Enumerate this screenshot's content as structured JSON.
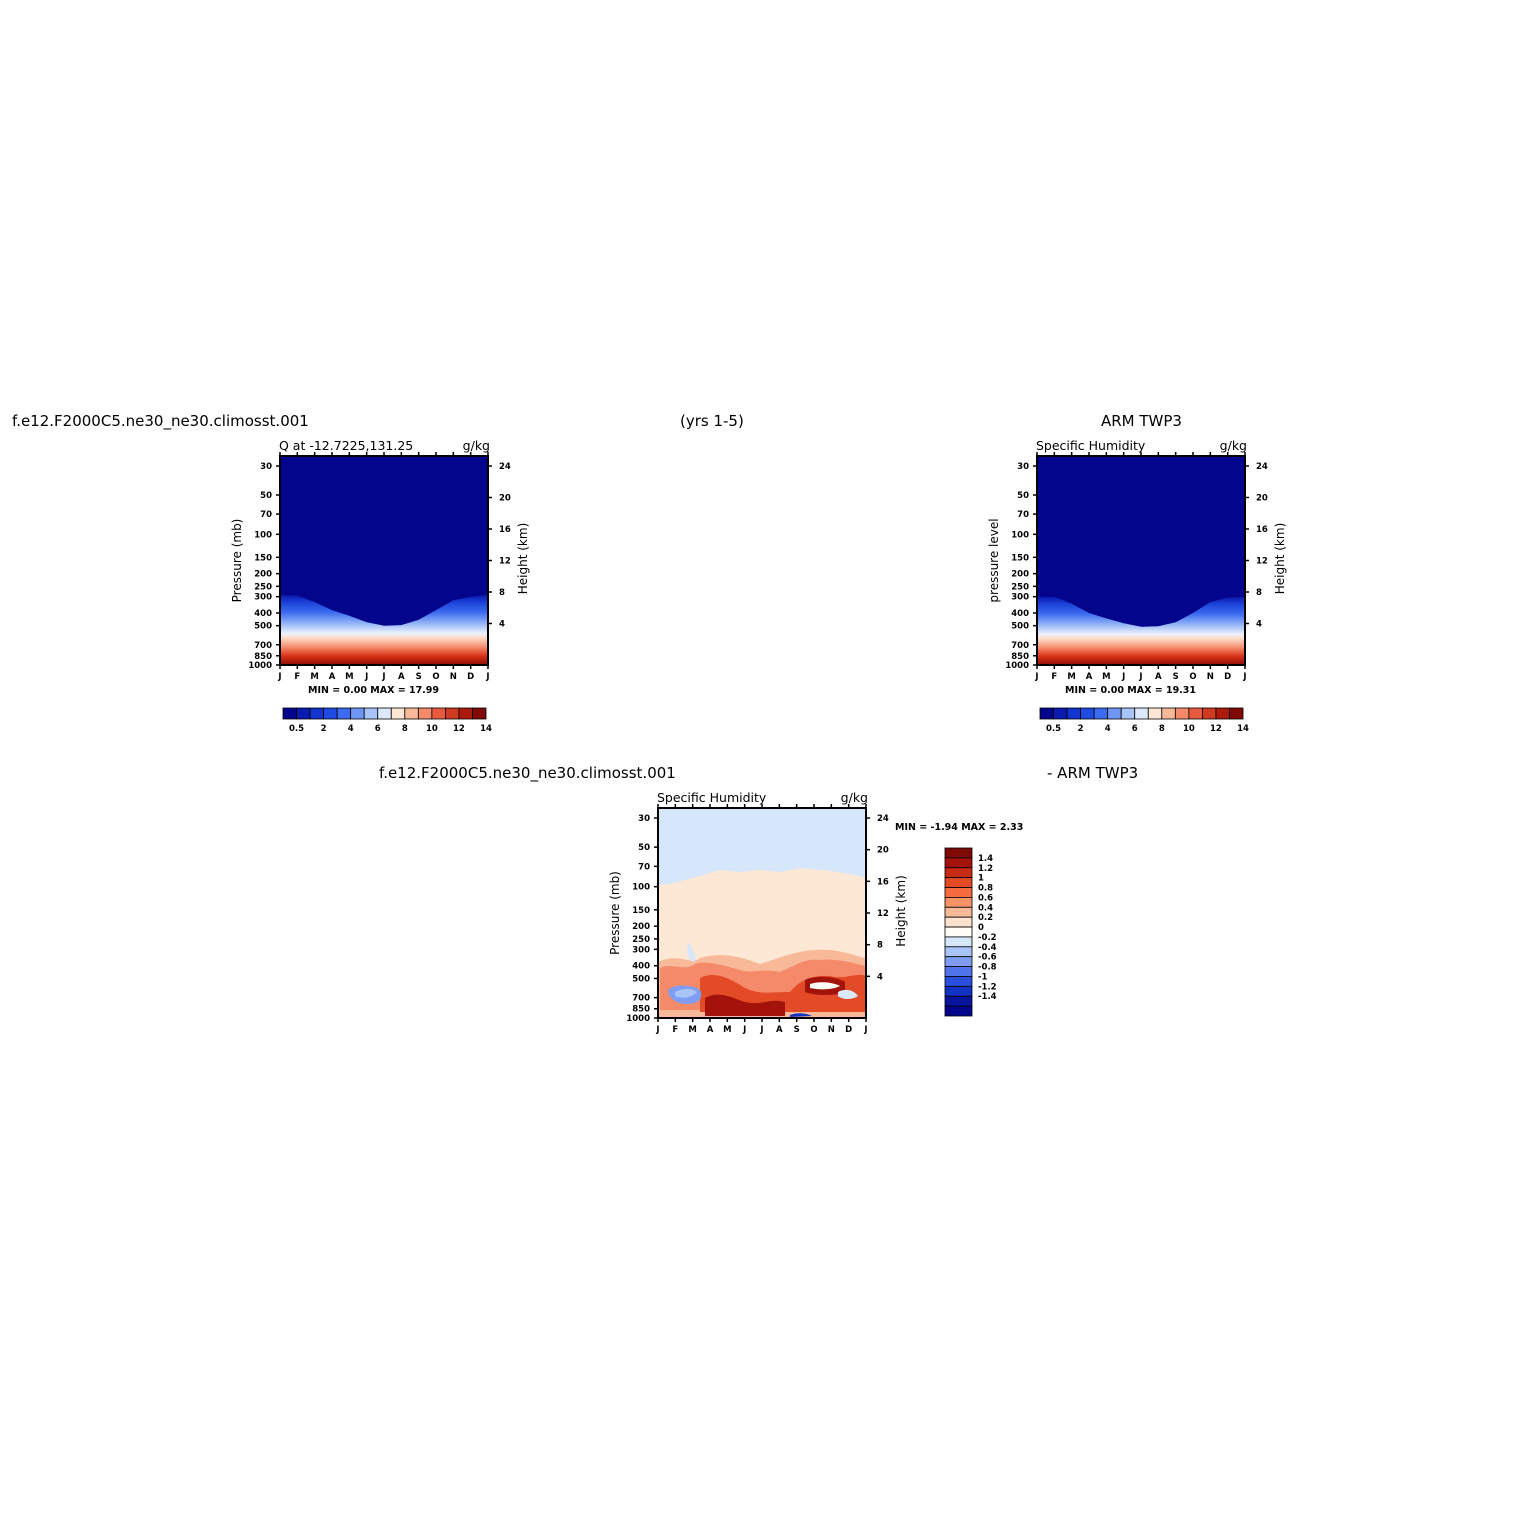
{
  "header": {
    "left_title": "f.e12.F2000C5.ne30_ne30.climosst.001",
    "center_title": "(yrs 1-5)",
    "right_title": "ARM TWP3",
    "diff_title_model": "f.e12.F2000C5.ne30_ne30.climosst.001",
    "diff_title_obs": "- ARM TWP3"
  },
  "chart_data": [
    {
      "type": "heatmap",
      "name": "model",
      "subtitle_left": "Q at -12.7225,131.25",
      "subtitle_right": "g/kg",
      "ylabel": "Pressure (mb)",
      "ylabel_right": "Height (km)",
      "x_ticks": [
        "J",
        "F",
        "M",
        "A",
        "M",
        "J",
        "J",
        "A",
        "S",
        "O",
        "N",
        "D",
        "J"
      ],
      "y_ticks": [
        30,
        50,
        70,
        100,
        150,
        200,
        250,
        300,
        400,
        500,
        700,
        850,
        1000
      ],
      "height_ticks": [
        4,
        8,
        12,
        16,
        20,
        24
      ],
      "stats": "MIN =    0.00 MAX =    17.99",
      "colorbar": {
        "labels": [
          "0.5",
          "2",
          "4",
          "6",
          "8",
          "10",
          "12",
          "14"
        ]
      },
      "moist_top_pressure_by_month": [
        290,
        295,
        330,
        380,
        420,
        470,
        500,
        495,
        450,
        380,
        320,
        300,
        290
      ]
    },
    {
      "type": "heatmap",
      "name": "observations",
      "subtitle_left": "Specific Humidity",
      "subtitle_right": "g/kg",
      "ylabel": "pressure level",
      "ylabel_right": "Height (km)",
      "x_ticks": [
        "J",
        "F",
        "M",
        "A",
        "M",
        "J",
        "J",
        "A",
        "S",
        "O",
        "N",
        "D",
        "J"
      ],
      "y_ticks": [
        30,
        50,
        70,
        100,
        150,
        200,
        250,
        300,
        400,
        500,
        700,
        850,
        1000
      ],
      "height_ticks": [
        4,
        8,
        12,
        16,
        20,
        24
      ],
      "stats": "MIN =    0.00 MAX =    19.31",
      "colorbar": {
        "labels": [
          "0.5",
          "2",
          "4",
          "6",
          "8",
          "10",
          "12",
          "14"
        ]
      },
      "moist_top_pressure_by_month": [
        300,
        300,
        340,
        400,
        440,
        480,
        510,
        505,
        470,
        400,
        330,
        305,
        300
      ]
    },
    {
      "type": "heatmap",
      "name": "difference",
      "subtitle_left": "Specific Humidity",
      "subtitle_right": "g/kg",
      "ylabel": "Pressure (mb)",
      "ylabel_right": "Height (km)",
      "x_ticks": [
        "J",
        "F",
        "M",
        "A",
        "M",
        "J",
        "J",
        "A",
        "S",
        "O",
        "N",
        "D",
        "J"
      ],
      "y_ticks": [
        30,
        50,
        70,
        100,
        150,
        200,
        250,
        300,
        400,
        500,
        700,
        850,
        1000
      ],
      "height_ticks": [
        4,
        8,
        12,
        16,
        20,
        24
      ],
      "stats": "MIN =   -1.94 MAX =    2.33",
      "colorbar": {
        "labels": [
          "1.4",
          "1.2",
          "1",
          "0.8",
          "0.6",
          "0.4",
          "0.2",
          "0",
          "-0.2",
          "-0.4",
          "-0.6",
          "-0.8",
          "-1",
          "-1.2",
          "-1.4"
        ]
      }
    }
  ],
  "colors": {
    "sequential": [
      "#03068c",
      "#0a1cb0",
      "#1234cf",
      "#1f4be3",
      "#3b6bf0",
      "#6f96f5",
      "#a9c4f8",
      "#dce8fb",
      "#fce6d6",
      "#f7b99a",
      "#f48a6a",
      "#e85a3c",
      "#d03a1f",
      "#ac1a0e",
      "#7f0a06"
    ],
    "diverging": [
      "#7f0a06",
      "#a3130c",
      "#c82a14",
      "#e34a26",
      "#f56a3e",
      "#f69467",
      "#f8b998",
      "#fde3cf",
      "#fdfcf7",
      "#d6e7fb",
      "#a9c4f8",
      "#7f9ef3",
      "#4f74ec",
      "#2a4fdf",
      "#1232c4",
      "#06149e",
      "#03068c"
    ]
  }
}
